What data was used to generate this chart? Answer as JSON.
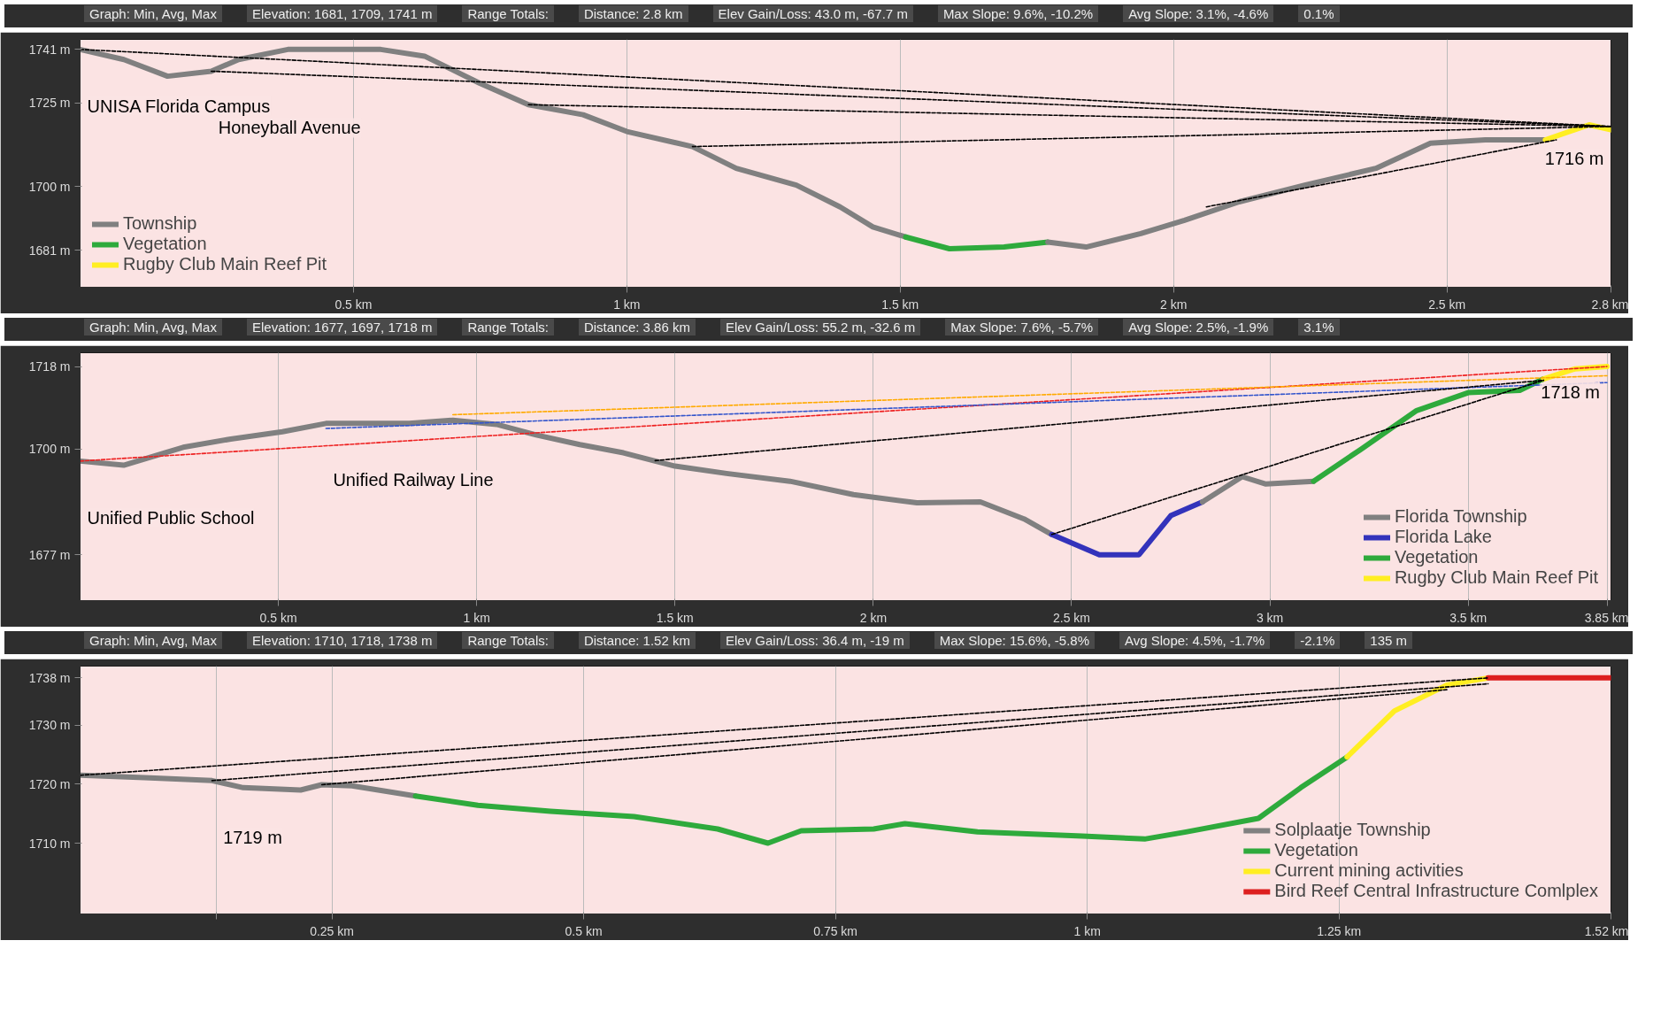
{
  "chart_data": [
    {
      "type": "line",
      "line_style": "solid",
      "grid": "x",
      "legend": "bottom left",
      "xlim": [
        0,
        2.8
      ],
      "ylim": [
        1670,
        1744
      ],
      "xticks": [
        {
          "value": 0.5,
          "label": "0.5 km"
        },
        {
          "value": 1,
          "label": "1 km"
        },
        {
          "value": 1.5,
          "label": "1.5 km"
        },
        {
          "value": 2,
          "label": "2 km"
        },
        {
          "value": 2.5,
          "label": "2.5 km"
        },
        {
          "value": 2.8,
          "label": "2.8 km"
        }
      ],
      "yticks": [
        {
          "value": 1681,
          "label": "1681 m"
        },
        {
          "value": 1700,
          "label": "1700 m"
        },
        {
          "value": 1725,
          "label": "1725 m"
        },
        {
          "value": 1741,
          "label": "1741 m"
        }
      ],
      "annotations": [
        "Graph: Min, Avg, Max",
        "Elevation: 1681, 1709, 1741 m",
        "Range Totals:",
        "Distance: 2.8 km",
        "Elev Gain/Loss: 43.0 m, -67.7 m",
        "Max Slope: 9.6%, -10.2%",
        "Avg Slope: 3.1%, -4.6%",
        "0.1%",
        {
          "text": "UNISA Florida Campus",
          "x": 0,
          "y": 1741
        },
        {
          "text": "Honeyball Avenue",
          "x": 0.24,
          "y": 1734.5
        },
        {
          "text": "1716 m",
          "x": 2.8,
          "y": 1716
        }
      ],
      "series": [
        {
          "name": "Township",
          "color": "#808080",
          "x": [
            0,
            0.08,
            0.16,
            0.24,
            0.29,
            0.38,
            0.55,
            0.63,
            0.73,
            0.82,
            0.92,
            1.0,
            1.12,
            1.2,
            1.31,
            1.39,
            1.45,
            1.51
          ],
          "values": [
            1741,
            1738,
            1733,
            1734.5,
            1738,
            1741,
            1741,
            1739,
            1731,
            1724.5,
            1721.5,
            1716.5,
            1712,
            1705.5,
            1700.5,
            1694,
            1688,
            1685
          ]
        },
        {
          "name": "Vegetation",
          "color": "#2eaa3c",
          "x": [
            1.51,
            1.59,
            1.69,
            1.77
          ],
          "values": [
            1685,
            1681.5,
            1682,
            1683.5
          ]
        },
        {
          "color": "#808080",
          "x": [
            1.77,
            1.84,
            1.94,
            2.02,
            2.12,
            2.24,
            2.37,
            2.47,
            2.57,
            2.68
          ],
          "values": [
            1683.5,
            1682,
            1686,
            1690,
            1695.5,
            1700.5,
            1705.5,
            1713,
            1714,
            1714
          ]
        },
        {
          "name": "Rugby Club Main Reef Pit",
          "color": "#ffee22",
          "x": [
            2.68,
            2.76,
            2.8
          ],
          "values": [
            1714,
            1718.5,
            1717
          ]
        },
        {
          "type": "line",
          "line_style": "dashed",
          "color": "#000000",
          "x": [
            0,
            2.8
          ],
          "values": [
            1741,
            1718
          ]
        },
        {
          "type": "line",
          "line_style": "dashed",
          "color": "#000000",
          "x": [
            0.24,
            2.8
          ],
          "values": [
            1734.5,
            1718
          ]
        },
        {
          "type": "line",
          "line_style": "dashed",
          "color": "#000000",
          "x": [
            0.82,
            2.8
          ],
          "values": [
            1724.5,
            1718
          ]
        },
        {
          "type": "line",
          "line_style": "dashed",
          "color": "#000000",
          "x": [
            1.12,
            2.8
          ],
          "values": [
            1712,
            1718
          ]
        },
        {
          "type": "line",
          "line_style": "dashed",
          "color": "#000000",
          "x": [
            2.06,
            2.7
          ],
          "values": [
            1694,
            1714
          ]
        }
      ]
    },
    {
      "type": "line",
      "line_style": "solid",
      "grid": "x",
      "legend": "bottom right",
      "xlim": [
        0,
        3.86
      ],
      "ylim": [
        1667,
        1721
      ],
      "xticks": [
        {
          "value": 0.5,
          "label": "0.5 km"
        },
        {
          "value": 1,
          "label": "1 km"
        },
        {
          "value": 1.5,
          "label": "1.5 km"
        },
        {
          "value": 2,
          "label": "2 km"
        },
        {
          "value": 2.5,
          "label": "2.5 km"
        },
        {
          "value": 3,
          "label": "3 km"
        },
        {
          "value": 3.5,
          "label": "3.5 km"
        },
        {
          "value": 3.85,
          "label": "3.85 km"
        }
      ],
      "yticks": [
        {
          "value": 1677,
          "label": "1677 m"
        },
        {
          "value": 1700,
          "label": "1700 m"
        },
        {
          "value": 1718,
          "label": "1718 m"
        }
      ],
      "annotations": [
        "Graph: Min, Avg, Max",
        "Elevation: 1677, 1697, 1718 m",
        "Range Totals:",
        "Distance: 3.86 km",
        "Elev Gain/Loss: 55.2 m, -32.6 m",
        "Max Slope: 7.6%, -5.7%",
        "Avg Slope: 2.5%, -1.9%",
        "3.1%",
        {
          "text": "Unified Public School",
          "x": 0,
          "y": 1697.4
        },
        {
          "text": "Unified Railway Line",
          "x": 0.62,
          "y": 1705.6
        },
        {
          "text": "1718 m",
          "x": 3.85,
          "y": 1718
        }
      ],
      "series": [
        {
          "name": "Florida Township",
          "color": "#808080",
          "x": [
            0,
            0.11,
            0.26,
            0.38,
            0.51,
            0.62,
            0.83,
            0.94,
            1.05,
            1.15,
            1.26,
            1.37,
            1.5,
            1.63,
            1.79,
            1.95,
            2.11,
            2.27,
            2.38,
            2.45
          ],
          "values": [
            1697.4,
            1696.5,
            1700.4,
            1702.2,
            1703.8,
            1705.6,
            1705.6,
            1706.3,
            1705.4,
            1703.1,
            1701,
            1699.2,
            1696.3,
            1694.7,
            1693,
            1690.1,
            1688.3,
            1688.5,
            1684.8,
            1681.4
          ]
        },
        {
          "name": "Florida Lake",
          "color": "#3333bb",
          "x": [
            2.45,
            2.57,
            2.67,
            2.75,
            2.83
          ],
          "values": [
            1681.4,
            1677,
            1677,
            1685.5,
            1688.5
          ]
        },
        {
          "color": "#808080",
          "x": [
            2.83,
            2.93,
            2.99,
            3.11
          ],
          "values": [
            1688.5,
            1694,
            1692.4,
            1693
          ]
        },
        {
          "name": "Vegetation",
          "color": "#2eaa3c",
          "x": [
            3.11,
            3.23,
            3.37,
            3.5,
            3.63,
            3.69
          ],
          "values": [
            1693,
            1700,
            1708.4,
            1712.3,
            1712.8,
            1715.3
          ]
        },
        {
          "name": "Rugby Club Main Reef Pit",
          "color": "#ffee22",
          "x": [
            3.69,
            3.77,
            3.85
          ],
          "values": [
            1715.3,
            1717.5,
            1718
          ]
        },
        {
          "type": "line",
          "line_style": "dashed",
          "color": "#ee2222",
          "x": [
            0,
            3.85
          ],
          "values": [
            1697.4,
            1718
          ]
        },
        {
          "type": "line",
          "line_style": "dashed",
          "color": "#ffaa00",
          "x": [
            0.94,
            3.85
          ],
          "values": [
            1707.5,
            1716
          ]
        },
        {
          "type": "line",
          "line_style": "dashed",
          "color": "#3355cc",
          "x": [
            0.62,
            3.85
          ],
          "values": [
            1704.5,
            1714.5
          ]
        },
        {
          "type": "line",
          "line_style": "dashed",
          "color": "#000000",
          "x": [
            1.45,
            3.69
          ],
          "values": [
            1697.5,
            1715
          ]
        },
        {
          "type": "line",
          "line_style": "dashed",
          "color": "#000000",
          "x": [
            2.45,
            3.69
          ],
          "values": [
            1681.4,
            1715
          ]
        }
      ]
    },
    {
      "type": "line",
      "line_style": "solid",
      "grid": "x",
      "legend": "bottom right",
      "xlim": [
        0,
        1.52
      ],
      "ylim": [
        1698,
        1740
      ],
      "xticks": [
        {
          "value": 0.135,
          "label": null
        },
        {
          "value": 0.25,
          "label": "0.25 km"
        },
        {
          "value": 0.5,
          "label": "0.5 km"
        },
        {
          "value": 0.75,
          "label": "0.75 km"
        },
        {
          "value": 1,
          "label": "1 km"
        },
        {
          "value": 1.25,
          "label": "1.25 km"
        },
        {
          "value": 1.52,
          "label": "1.52 km"
        }
      ],
      "yticks": [
        {
          "value": 1710,
          "label": "1710 m"
        },
        {
          "value": 1720,
          "label": "1720 m"
        },
        {
          "value": 1730,
          "label": "1730 m"
        },
        {
          "value": 1738,
          "label": "1738 m"
        }
      ],
      "annotations": [
        "Graph: Min, Avg, Max",
        "Elevation: 1710, 1718, 1738 m",
        "Range Totals:",
        "Distance: 1.52 km",
        "Elev Gain/Loss: 36.4 m, -19 m",
        "Max Slope: 15.6%, -5.8%",
        "Avg Slope: 4.5%, -1.7%",
        "-2.1%",
        "135 m",
        {
          "text": "1719 m",
          "x": 0.135,
          "y": 1720.6
        }
      ],
      "series": [
        {
          "name": "Solplaatje Township",
          "color": "#808080",
          "x": [
            0,
            0.064,
            0.131,
            0.162,
            0.219,
            0.24,
            0.27,
            0.333
          ],
          "values": [
            1721.5,
            1721.1,
            1720.6,
            1719.4,
            1719,
            1719.9,
            1719.7,
            1718
          ]
        },
        {
          "name": "Vegetation",
          "color": "#2eaa3c",
          "x": [
            0.333,
            0.395,
            0.467,
            0.55,
            0.633,
            0.683,
            0.716,
            0.788,
            0.819,
            0.891,
            0.995,
            1.057,
            1.098,
            1.17,
            1.212,
            1.258
          ],
          "values": [
            1718,
            1716.4,
            1715.4,
            1714.5,
            1712.4,
            1710,
            1712.1,
            1712.4,
            1713.3,
            1711.9,
            1711.2,
            1710.7,
            1711.9,
            1714.2,
            1719.4,
            1724.6
          ]
        },
        {
          "name": "Current mining activities",
          "color": "#ffee22",
          "x": [
            1.258,
            1.305,
            1.357,
            1.398
          ],
          "values": [
            1724.6,
            1732.4,
            1736.8,
            1738
          ]
        },
        {
          "name": "Bird Reef Central Infrastructure Comlplex",
          "color": "#dd1f1f",
          "x": [
            1.398,
            1.52
          ],
          "values": [
            1738,
            1738
          ]
        },
        {
          "type": "line",
          "line_style": "dashed",
          "color": "#000000",
          "x": [
            0,
            1.398
          ],
          "values": [
            1721.5,
            1738
          ]
        },
        {
          "type": "line",
          "line_style": "dashed",
          "color": "#000000",
          "x": [
            0.131,
            1.398
          ],
          "values": [
            1720.6,
            1737
          ]
        },
        {
          "type": "line",
          "line_style": "dashed",
          "color": "#000000",
          "x": [
            0.24,
            1.357
          ],
          "values": [
            1719.9,
            1736
          ]
        }
      ]
    }
  ]
}
